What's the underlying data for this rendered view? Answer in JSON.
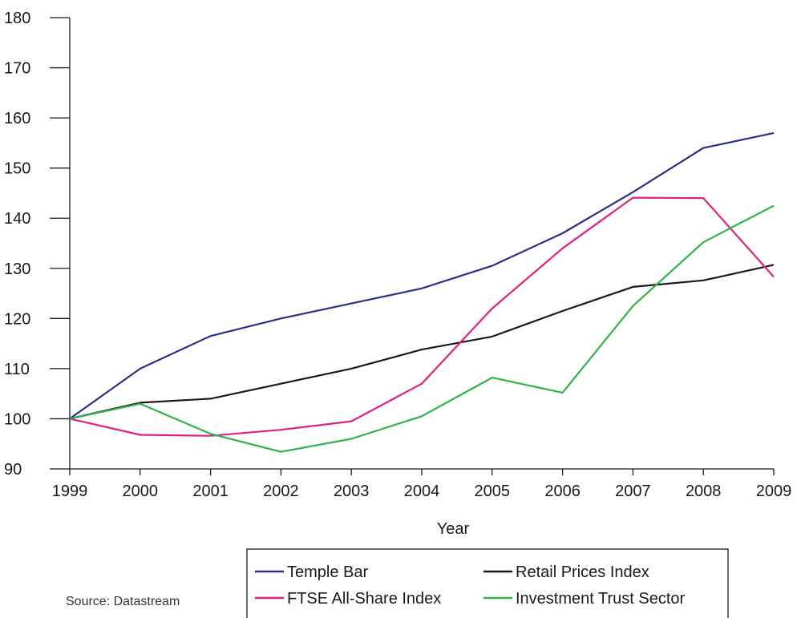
{
  "chart_data": {
    "type": "line",
    "title": "",
    "xlabel": "Year",
    "ylabel": "",
    "x": [
      1999,
      2000,
      2001,
      2002,
      2003,
      2004,
      2005,
      2006,
      2007,
      2008,
      2009
    ],
    "x_tick_labels": [
      "1999",
      "2000",
      "2001",
      "2002",
      "2003",
      "2004",
      "2005",
      "2006",
      "2007",
      "2008",
      "2009"
    ],
    "ylim": [
      90,
      180
    ],
    "y_ticks": [
      90,
      100,
      110,
      120,
      130,
      140,
      150,
      160,
      170,
      180
    ],
    "y_tick_labels": [
      "90",
      "100",
      "110",
      "120",
      "130",
      "140",
      "150",
      "160",
      "170",
      "180"
    ],
    "grid": false,
    "legend_position": "bottom",
    "series": [
      {
        "name": "Temple Bar",
        "color": "#2b2f86",
        "values": [
          100,
          110,
          116.5,
          120,
          123,
          126,
          130.5,
          137,
          145.2,
          154,
          157
        ]
      },
      {
        "name": "Retail Prices Index",
        "color": "#1a1a1a",
        "values": [
          100,
          103.2,
          104,
          107,
          110,
          113.8,
          116.4,
          121.5,
          126.3,
          127.6,
          130.7
        ]
      },
      {
        "name": "FTSE All-Share Index",
        "color": "#e0207f",
        "values": [
          100,
          96.8,
          96.6,
          97.8,
          99.5,
          107,
          122,
          134,
          144.1,
          144,
          128.3
        ]
      },
      {
        "name": "Investment Trust Sector",
        "color": "#2db34a",
        "values": [
          100,
          103,
          97,
          93.4,
          96,
          100.5,
          108.2,
          105.2,
          122.5,
          135.2,
          142.5
        ]
      }
    ]
  },
  "source": "Source: Datastream"
}
